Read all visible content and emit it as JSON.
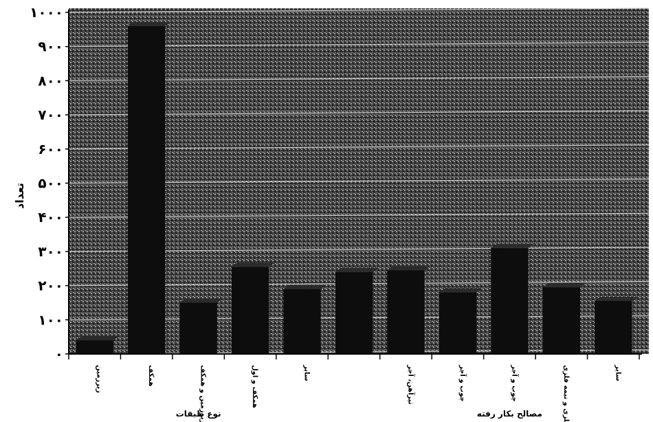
{
  "chart_data": {
    "type": "bar",
    "ylabel": "تعداد",
    "ylim": [
      0,
      1000
    ],
    "y_ticks": [
      {
        "value": 0,
        "label": "۰"
      },
      {
        "value": 100,
        "label": "۱۰۰"
      },
      {
        "value": 200,
        "label": "۲۰۰"
      },
      {
        "value": 300,
        "label": "۳۰۰"
      },
      {
        "value": 400,
        "label": "۴۰۰"
      },
      {
        "value": 500,
        "label": "۵۰۰"
      },
      {
        "value": 600,
        "label": "۶۰۰"
      },
      {
        "value": 700,
        "label": "۷۰۰"
      },
      {
        "value": 800,
        "label": "۸۰۰"
      },
      {
        "value": 900,
        "label": "۹۰۰"
      },
      {
        "value": 1000,
        "label": "۱۰۰۰"
      }
    ],
    "categories": [
      "زیرزمین",
      "همکف",
      "زیرزمین و همکف",
      "همکف و اول",
      "سایر",
      "",
      "تیرآهن، آجر",
      "چوب و آجر",
      "چوب و آجر",
      "فلزی و نیمه فلزی",
      "سایر"
    ],
    "values": [
      40,
      960,
      150,
      255,
      190,
      240,
      245,
      180,
      310,
      195,
      155
    ],
    "group_labels": [
      {
        "label": "نوع طبقات",
        "from": 0,
        "to": 4
      },
      {
        "label": "مصالح بکار رفته",
        "from": 6,
        "to": 10
      }
    ],
    "grid": true,
    "legend": "none"
  }
}
